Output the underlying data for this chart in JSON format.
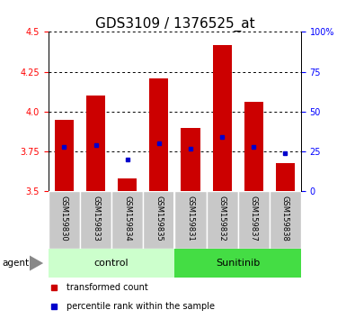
{
  "title": "GDS3109 / 1376525_at",
  "samples": [
    "GSM159830",
    "GSM159833",
    "GSM159834",
    "GSM159835",
    "GSM159831",
    "GSM159832",
    "GSM159837",
    "GSM159838"
  ],
  "bar_tops": [
    3.95,
    4.1,
    3.58,
    4.21,
    3.9,
    4.42,
    4.06,
    3.68
  ],
  "bar_bottoms": [
    3.5,
    3.5,
    3.5,
    3.5,
    3.5,
    3.5,
    3.5,
    3.5
  ],
  "percentile_values": [
    3.78,
    3.79,
    3.7,
    3.8,
    3.77,
    3.84,
    3.78,
    3.74
  ],
  "ylim_left": [
    3.5,
    4.5
  ],
  "ylim_right": [
    0,
    100
  ],
  "yticks_left": [
    3.5,
    3.75,
    4.0,
    4.25,
    4.5
  ],
  "yticks_right": [
    0,
    25,
    50,
    75,
    100
  ],
  "ytick_labels_right": [
    "0",
    "25",
    "50",
    "75",
    "100%"
  ],
  "bar_color": "#cc0000",
  "dot_color": "#0000cc",
  "control_color": "#ccffcc",
  "sunitinib_color": "#44dd44",
  "gray_box_color": "#c8c8c8",
  "background_color": "#ffffff",
  "bar_width": 0.6,
  "title_fontsize": 11,
  "tick_fontsize": 7,
  "sample_fontsize": 6,
  "group_fontsize": 8,
  "legend_fontsize": 7
}
